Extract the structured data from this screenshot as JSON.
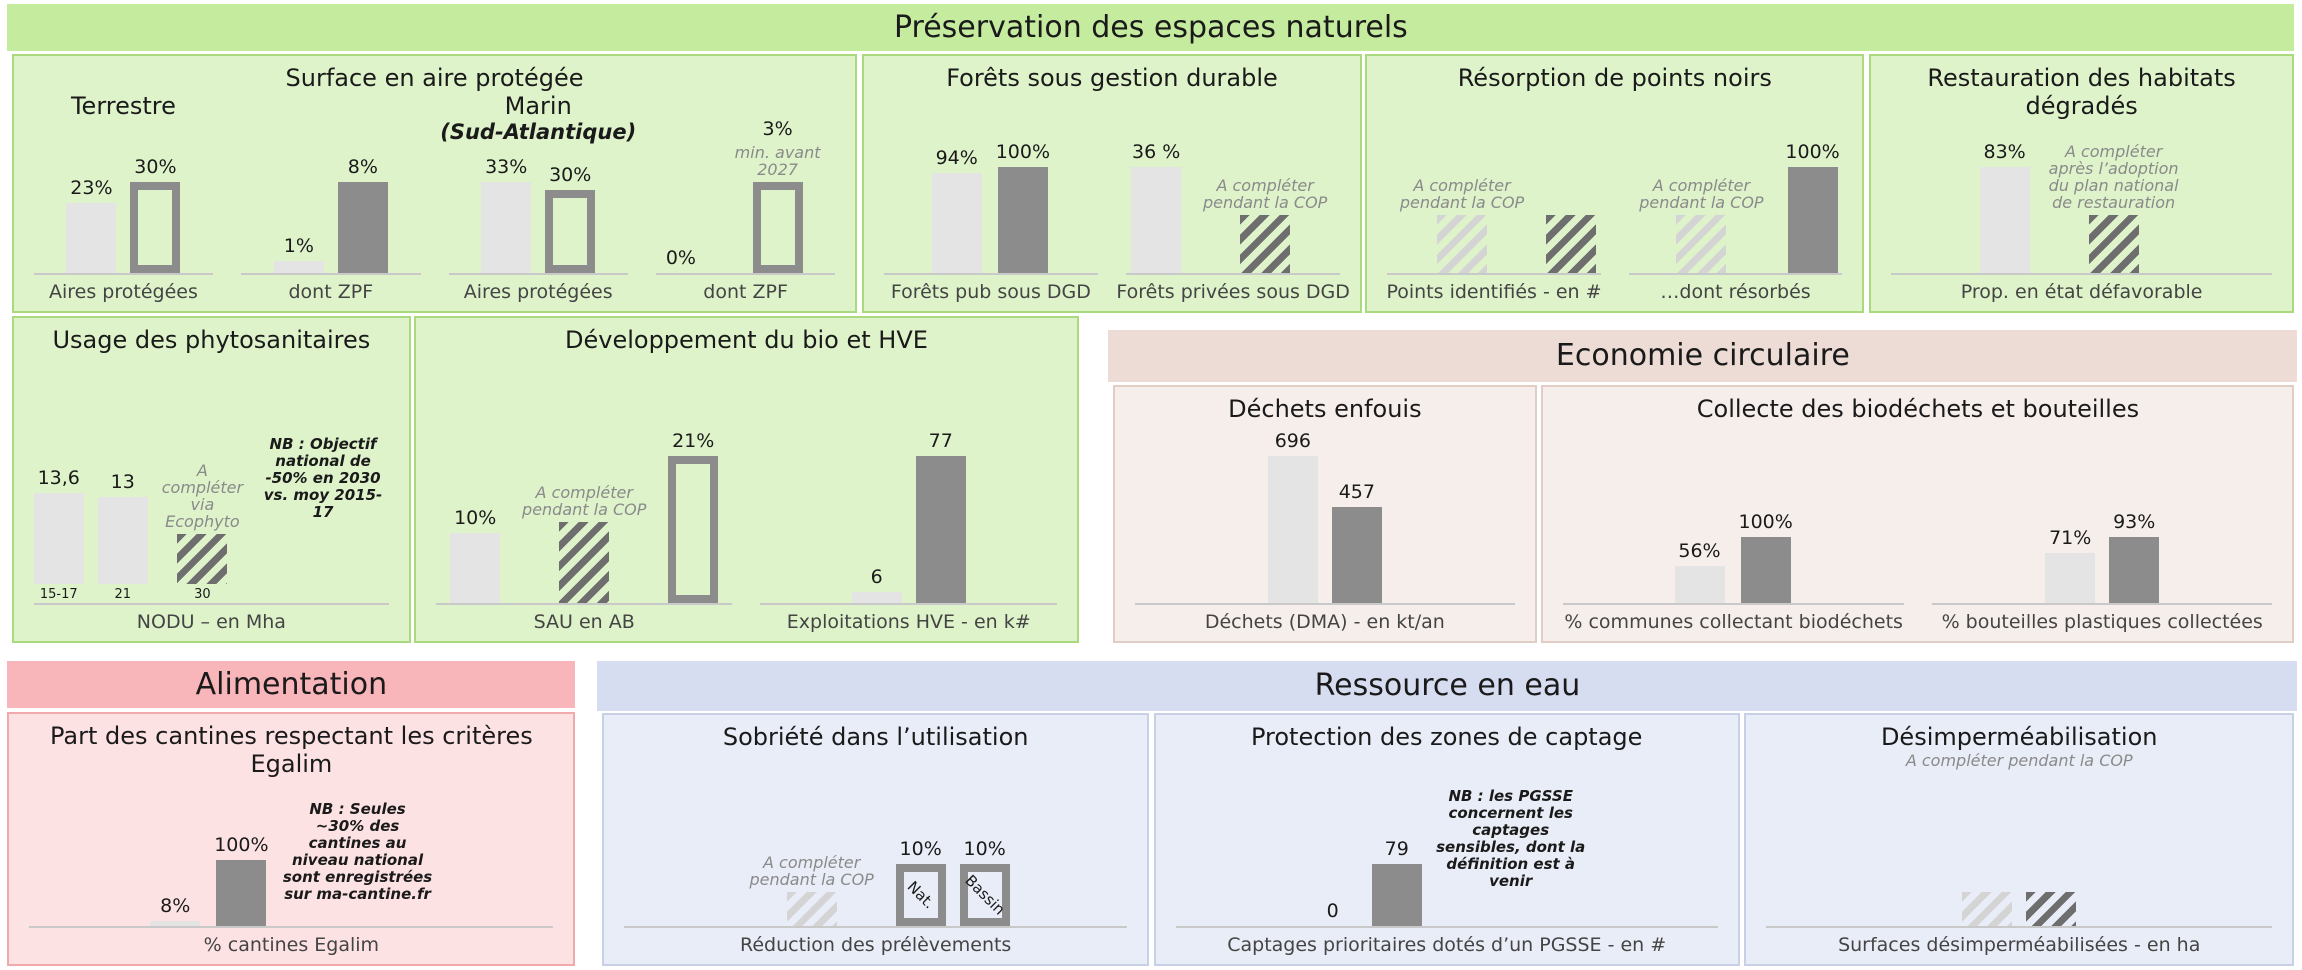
{
  "sections": [
    {
      "title": "Préservation des espaces naturels",
      "color": "#c5eb9f",
      "panel_color": "#dff3cb",
      "border_color": "#a9da7e",
      "panels": [
        {
          "title": "Surface en aire protégée",
          "charts": [
            {
              "title": "Terrestre",
              "label": "Aires protégées",
              "bars": [
                {
                  "value": 23,
                  "label": "23%",
                  "style": "light"
                },
                {
                  "value": 30,
                  "label": "30%",
                  "style": "target"
                }
              ]
            },
            {
              "label": "dont ZPF",
              "bars": [
                {
                  "value": 1,
                  "label": "1%",
                  "style": "light"
                },
                {
                  "value": 8,
                  "label": "8%",
                  "style": "dark"
                }
              ]
            },
            {
              "title": "Marin",
              "subtitle": "(Sud-Atlantique)",
              "label": "Aires protégées",
              "bars": [
                {
                  "value": 33,
                  "label": "33%",
                  "style": "light"
                },
                {
                  "value": 30,
                  "label": "30%",
                  "style": "target"
                }
              ]
            },
            {
              "label": "dont ZPF",
              "bars": [
                {
                  "value": 0,
                  "label": "0%",
                  "style": "light"
                },
                {
                  "value": 3,
                  "label": "3%",
                  "style": "target",
                  "note": "min. avant 2027"
                }
              ]
            }
          ]
        },
        {
          "title": "Forêts sous gestion durable",
          "charts": [
            {
              "label": "Forêts pub sous DGD",
              "bars": [
                {
                  "value": 94,
                  "label": "94%",
                  "style": "light"
                },
                {
                  "value": 100,
                  "label": "100%",
                  "style": "dark"
                }
              ]
            },
            {
              "label": "Forêts privées sous DGD",
              "bars": [
                {
                  "value": 36,
                  "label": "36 %",
                  "style": "light"
                },
                {
                  "style": "hatched",
                  "note": "A compléter pendant la COP"
                }
              ]
            }
          ]
        },
        {
          "title": "Résorption de points noirs",
          "charts": [
            {
              "label": "Points identifiés - en #",
              "bars": [
                {
                  "style": "hatched-light",
                  "note": "A compléter pendant la COP"
                },
                {
                  "style": "hatched"
                }
              ]
            },
            {
              "label": "…dont résorbés",
              "bars": [
                {
                  "style": "hatched-light",
                  "note": "A compléter pendant la COP"
                },
                {
                  "value": 100,
                  "label": "100%",
                  "style": "dark"
                }
              ]
            }
          ]
        },
        {
          "title": "Restauration des habitats dégradés",
          "charts": [
            {
              "label": "Prop. en état défavorable",
              "bars": [
                {
                  "value": 83,
                  "label": "83%",
                  "style": "light"
                },
                {
                  "style": "hatched",
                  "note": "A compléter après l’adoption du plan national de restauration"
                }
              ]
            }
          ]
        },
        {
          "title": "Usage des phytosanitaires",
          "charts": [
            {
              "label": "NODU – en Mha",
              "bars": [
                {
                  "value": 13.6,
                  "label": "13,6",
                  "style": "light",
                  "category": "15-17"
                },
                {
                  "value": 13,
                  "style": "light",
                  "category": "21"
                },
                {
                  "style": "hatched",
                  "category": "30",
                  "note": "A compléter via Ecophyto"
                }
              ],
              "note": "NB : Objectif national de -50% en 2030 vs. moy 2015-17"
            }
          ]
        },
        {
          "title": "Développement du bio et HVE",
          "charts": [
            {
              "label": "SAU en AB",
              "bars": [
                {
                  "value": 10,
                  "label": "10%",
                  "style": "light"
                },
                {
                  "style": "hatched",
                  "note": "A compléter pendant la COP"
                },
                {
                  "value": 21,
                  "label": "21%",
                  "style": "target"
                }
              ]
            },
            {
              "label": "Exploitations HVE - en k#",
              "bars": [
                {
                  "value": 6,
                  "style": "light"
                },
                {
                  "value": 77,
                  "style": "dark"
                }
              ]
            }
          ]
        }
      ]
    },
    {
      "title": "Economie circulaire",
      "color": "#ecdcd5",
      "panel_color": "#f6eeeb",
      "border_color": "#e2cdc4",
      "panels": [
        {
          "title": "Déchets enfouis",
          "charts": [
            {
              "label": "Déchets (DMA) - en kt/an",
              "bars": [
                {
                  "value": 696,
                  "style": "light"
                },
                {
                  "value": 457,
                  "style": "dark"
                }
              ]
            }
          ]
        },
        {
          "title": "Collecte des biodéchets et bouteilles",
          "charts": [
            {
              "label": "% communes collectant biodéchets",
              "bars": [
                {
                  "value": 56,
                  "label": "56%",
                  "style": "light"
                },
                {
                  "value": 100,
                  "label": "100%",
                  "style": "dark"
                }
              ]
            },
            {
              "label": "% bouteilles plastiques collectées",
              "bars": [
                {
                  "value": 71,
                  "label": "71%",
                  "style": "light"
                },
                {
                  "value": 93,
                  "label": "93%",
                  "style": "dark"
                }
              ]
            }
          ]
        }
      ]
    },
    {
      "title": "Alimentation",
      "color": "#f8b6ba",
      "panel_color": "#fde2e4",
      "border_color": "#f2a9ae",
      "panels": [
        {
          "title": "Part des cantines respectant les critères Egalim",
          "charts": [
            {
              "label": "% cantines Egalim",
              "bars": [
                {
                  "value": 8,
                  "label": "8%",
                  "style": "light"
                },
                {
                  "value": 100,
                  "label": "100%",
                  "style": "dark"
                }
              ],
              "note": "NB : Seules ~30% des cantines au niveau national sont enregistrées sur ma-cantine.fr"
            }
          ]
        }
      ]
    },
    {
      "title": "Ressource en eau",
      "color": "#d6ddf0",
      "panel_color": "#e9edf7",
      "border_color": "#c8d0e6",
      "panels": [
        {
          "title": "Sobriété dans l’utilisation",
          "charts": [
            {
              "label": "Réduction des prélèvements",
              "bars": [
                {
                  "style": "hatched-light",
                  "note": "A compléter pendant la COP"
                },
                {
                  "value": 10,
                  "label": "10%",
                  "style": "target",
                  "inner": "Nat."
                },
                {
                  "value": 10,
                  "label": "10%",
                  "style": "target",
                  "inner": "Bassin"
                }
              ]
            }
          ]
        },
        {
          "title": "Protection des zones de captage",
          "charts": [
            {
              "label": "Captages prioritaires dotés d’un PGSSE - en #",
              "bars": [
                {
                  "value": 0,
                  "style": "light"
                },
                {
                  "value": 79,
                  "style": "dark"
                }
              ],
              "note": "NB : les PGSSE concernent les captages sensibles, dont la définition est à venir"
            }
          ]
        },
        {
          "title": "Désimperméabilisation",
          "charts": [
            {
              "label": "Surfaces désimperméabilisées - en ha",
              "caption": "A compléter pendant la COP",
              "bars": [
                {
                  "style": "hatched-light"
                },
                {
                  "style": "hatched"
                }
              ]
            }
          ]
        }
      ]
    }
  ]
}
